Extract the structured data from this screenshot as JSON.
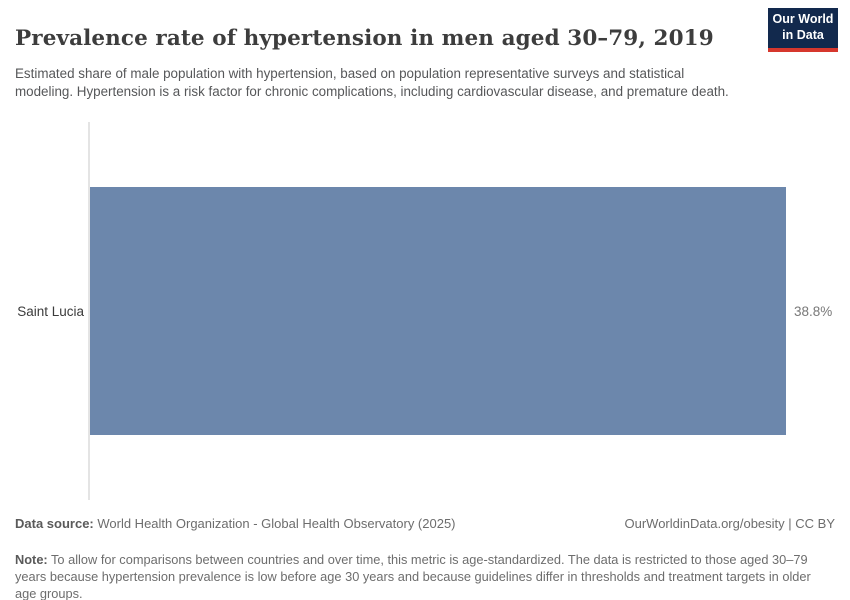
{
  "header": {
    "title": "Prevalence rate of hypertension in men aged 30–79, 2019",
    "subtitle": "Estimated share of male population with hypertension, based on population representative surveys and statistical modeling. Hypertension is a risk factor for chronic complications, including cardiovascular disease, and premature death.",
    "logo": {
      "line1": "Our World",
      "line2": "in Data"
    }
  },
  "chart_data": {
    "type": "bar",
    "orientation": "horizontal",
    "title": "Prevalence rate of hypertension in men aged 30–79, 2019",
    "categories": [
      "Saint Lucia"
    ],
    "values": [
      38.8
    ],
    "value_labels": [
      "38.8%"
    ],
    "unit": "%",
    "xlabel": "",
    "ylabel": "",
    "xlim": [
      0,
      38.8
    ],
    "grid": false,
    "legend": "none",
    "bar_color": "#6c87ac"
  },
  "footer": {
    "data_source_label": "Data source:",
    "data_source_text": " World Health Organization - Global Health Observatory (2025)",
    "attribution": "OurWorldinData.org/obesity | CC BY",
    "note_label": "Note:",
    "note_text": " To allow for comparisons between countries and over time, this metric is age-standardized. The data is restricted to those aged 30–79 years because hypertension prevalence is low before age 30 years and because guidelines differ in thresholds and treatment targets in older age groups."
  },
  "colors": {
    "bar": "#6c87ac",
    "axis_line": "#e4e4e4",
    "logo_background": "#12294d",
    "logo_accent_red": "#d6372d",
    "title_text": "#3d3d3d",
    "body_text": "#565759",
    "footer_text": "#6d6d6d"
  }
}
